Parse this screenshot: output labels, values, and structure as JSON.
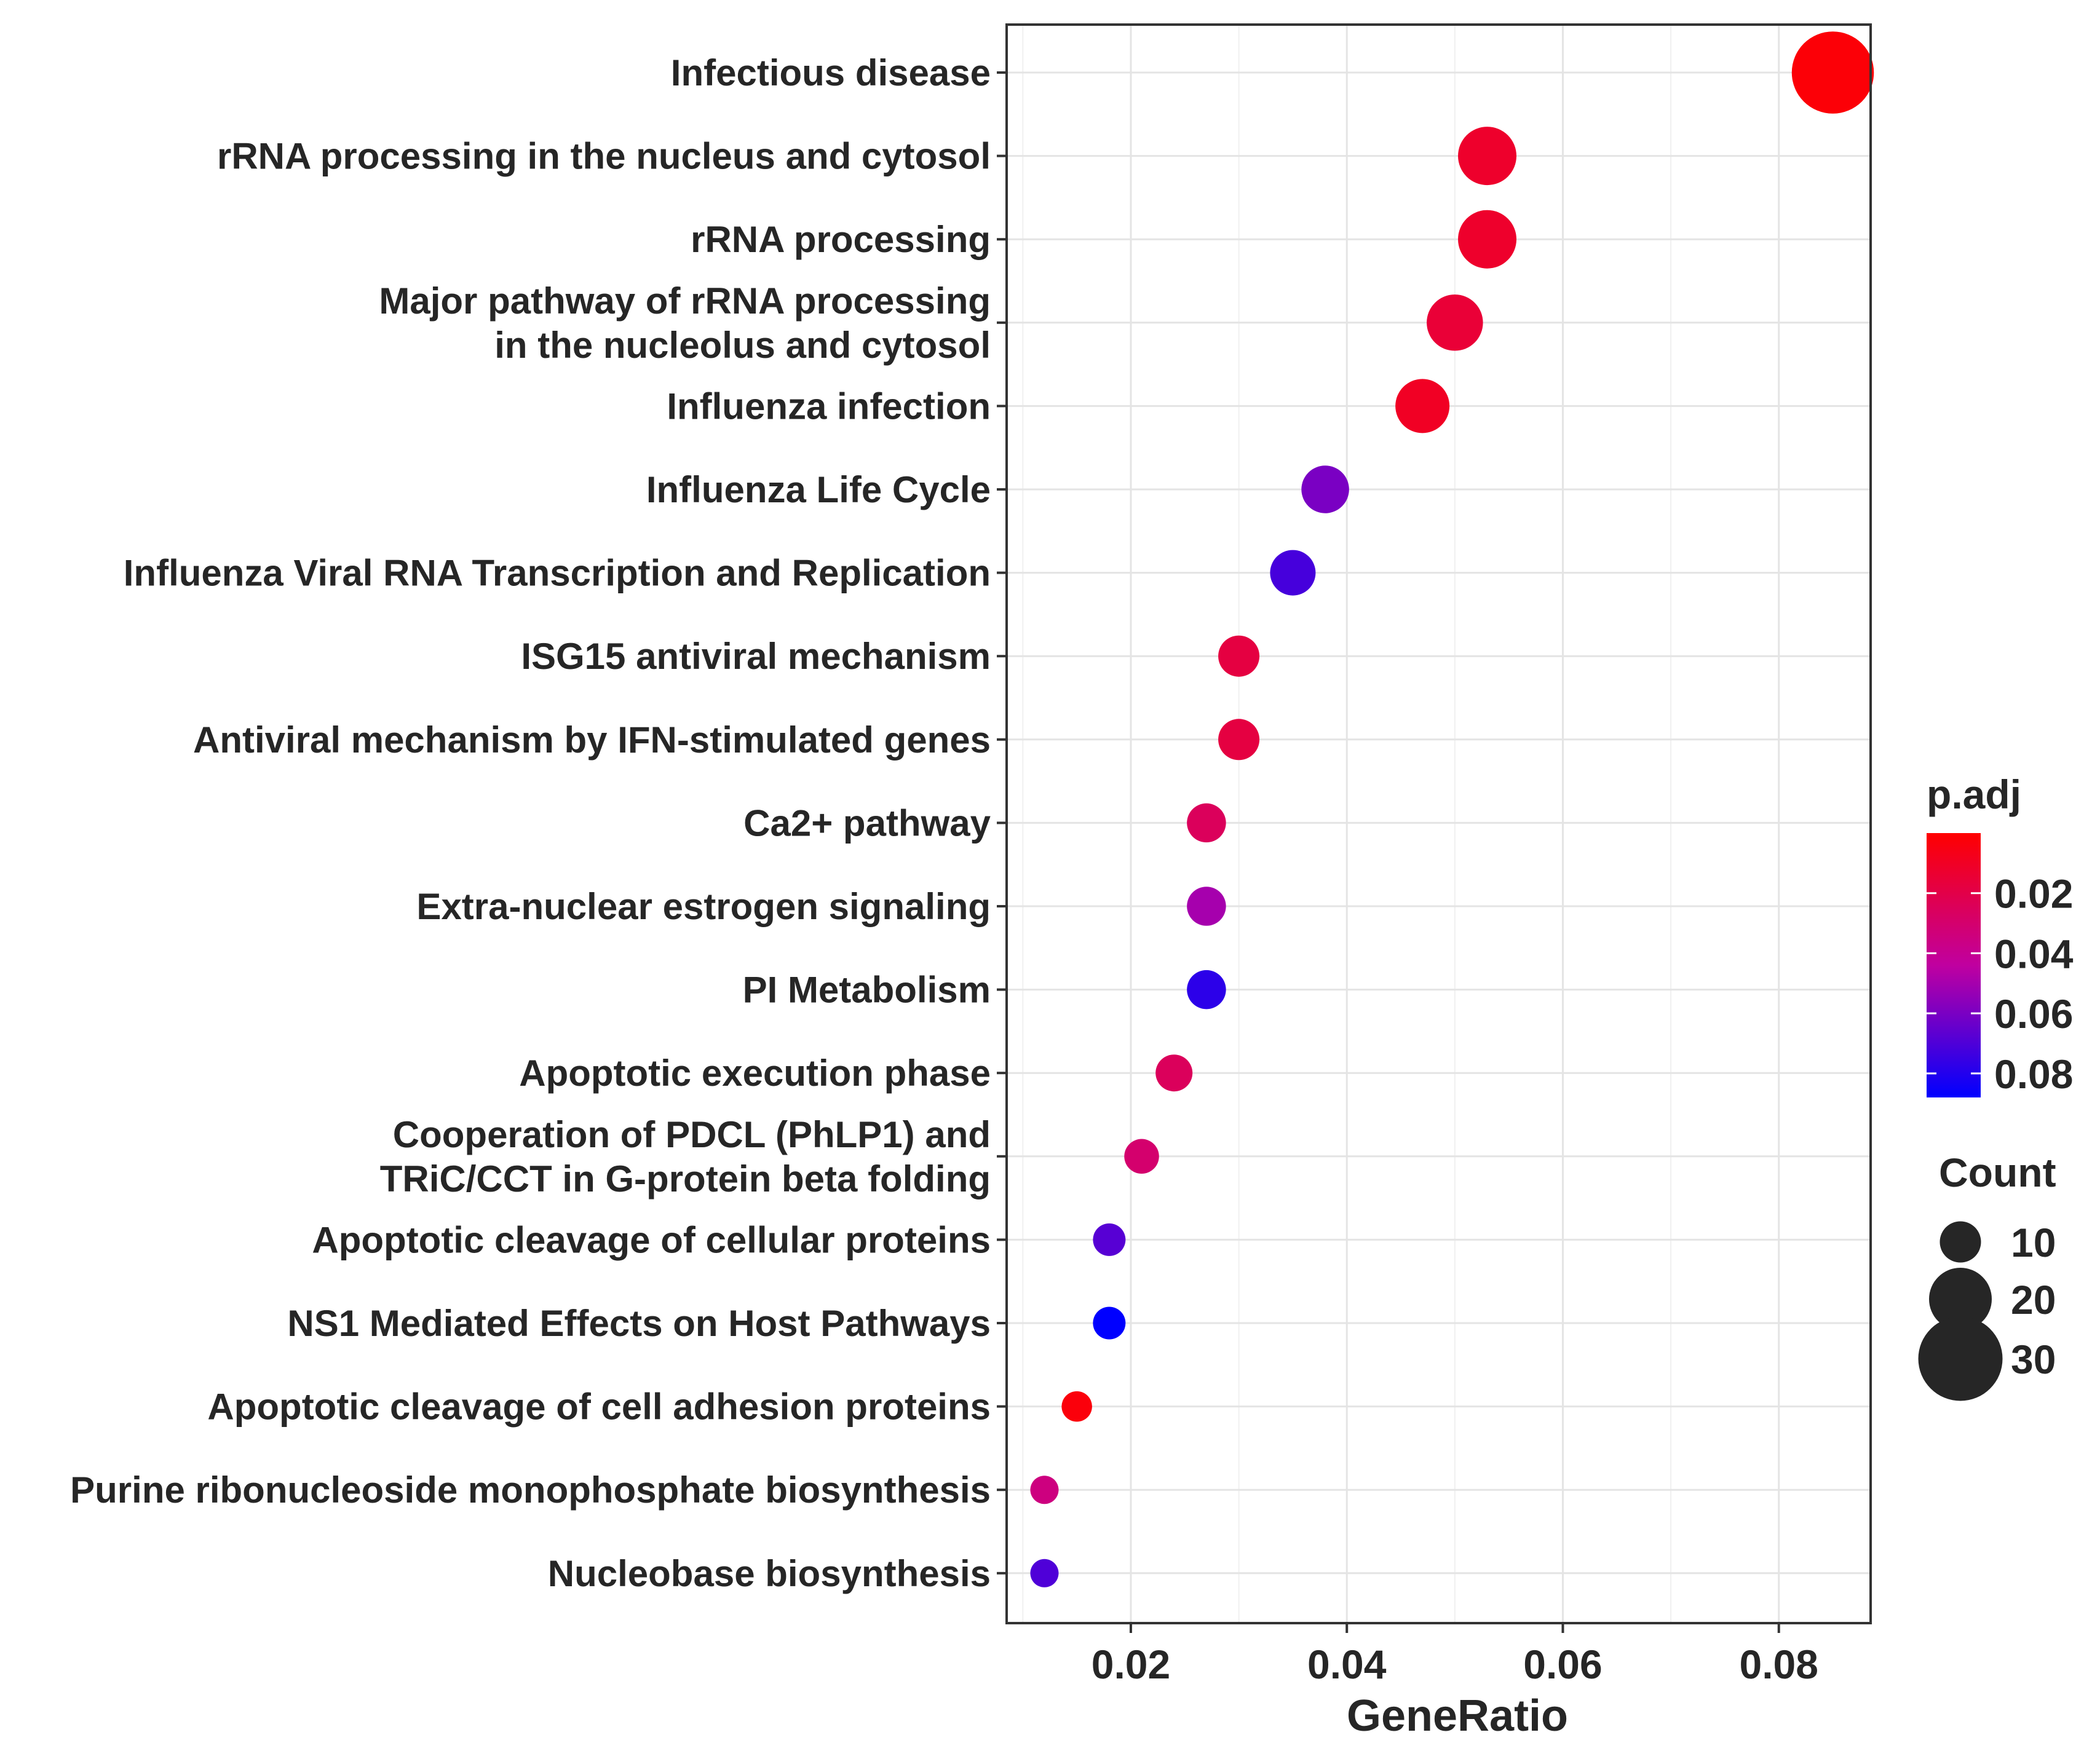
{
  "chart_data": {
    "type": "scatter",
    "title": "",
    "xlabel": "GeneRatio",
    "ylabel": "",
    "xlim": [
      0.0085,
      0.0885
    ],
    "xticks": [
      0.02,
      0.04,
      0.06,
      0.08
    ],
    "xtick_labels": [
      "0.02",
      "0.04",
      "0.06",
      "0.08"
    ],
    "grid": true,
    "legend_position": "right",
    "categories": [
      "Infectious disease",
      "rRNA processing in the nucleus and cytosol",
      "rRNA processing",
      "Major pathway of rRNA processing in the nucleolus and cytosol",
      "Influenza infection",
      "Influenza Life Cycle",
      "Influenza Viral RNA Transcription and Replication",
      "ISG15 antiviral mechanism",
      "Antiviral mechanism by IFN-stimulated genes",
      "Ca2+ pathway",
      "Extra-nuclear estrogen signaling",
      "PI Metabolism",
      "Apoptotic execution phase",
      "Cooperation of PDCL (PhLP1) and TRiC/CCT in G-protein beta folding",
      "Apoptotic cleavage of cellular proteins",
      "NS1 Mediated Effects on Host Pathways",
      "Apoptotic cleavage of cell adhesion proteins",
      "Purine ribonucleoside monophosphate biosynthesis",
      "Nucleobase biosynthesis"
    ],
    "category_lines": [
      [
        "Infectious disease"
      ],
      [
        "rRNA processing in the nucleus and cytosol"
      ],
      [
        "rRNA processing"
      ],
      [
        "Major pathway of rRNA processing",
        "in the nucleolus and cytosol"
      ],
      [
        "Influenza infection"
      ],
      [
        "Influenza Life Cycle"
      ],
      [
        "Influenza Viral RNA Transcription and Replication"
      ],
      [
        "ISG15 antiviral mechanism"
      ],
      [
        "Antiviral mechanism by IFN-stimulated genes"
      ],
      [
        "Ca2+ pathway"
      ],
      [
        "Extra-nuclear estrogen signaling"
      ],
      [
        "PI Metabolism"
      ],
      [
        "Apoptotic execution phase"
      ],
      [
        "Cooperation of PDCL (PhLP1) and",
        "TRiC/CCT in G-protein beta folding"
      ],
      [
        "Apoptotic cleavage of cellular proteins"
      ],
      [
        "NS1 Mediated Effects on Host Pathways"
      ],
      [
        "Apoptotic cleavage of cell adhesion proteins"
      ],
      [
        "Purine ribonucleoside monophosphate biosynthesis"
      ],
      [
        "Nucleobase biosynthesis"
      ]
    ],
    "gene_ratio": [
      0.085,
      0.053,
      0.053,
      0.05,
      0.047,
      0.038,
      0.035,
      0.03,
      0.03,
      0.027,
      0.027,
      0.027,
      0.024,
      0.021,
      0.018,
      0.018,
      0.015,
      0.012,
      0.012
    ],
    "count": [
      29,
      18,
      18,
      17,
      16,
      13,
      12,
      10,
      10,
      9,
      9,
      9,
      8,
      7,
      6,
      6,
      5,
      4,
      4
    ],
    "p_adj": [
      0.002,
      0.012,
      0.012,
      0.015,
      0.01,
      0.06,
      0.072,
      0.018,
      0.018,
      0.025,
      0.05,
      0.078,
      0.025,
      0.03,
      0.068,
      0.088,
      0.003,
      0.035,
      0.07
    ],
    "color_legend": {
      "title": "p.adj",
      "range": [
        0.0,
        0.088
      ],
      "ticks": [
        0.02,
        0.04,
        0.06,
        0.08
      ],
      "tick_labels": [
        "0.02",
        "0.04",
        "0.06",
        "0.08"
      ],
      "low_color": "#ff0000",
      "high_color": "#0000ff"
    },
    "size_legend": {
      "title": "Count",
      "values": [
        10,
        20,
        30
      ],
      "labels": [
        "10",
        "20",
        "30"
      ]
    }
  }
}
